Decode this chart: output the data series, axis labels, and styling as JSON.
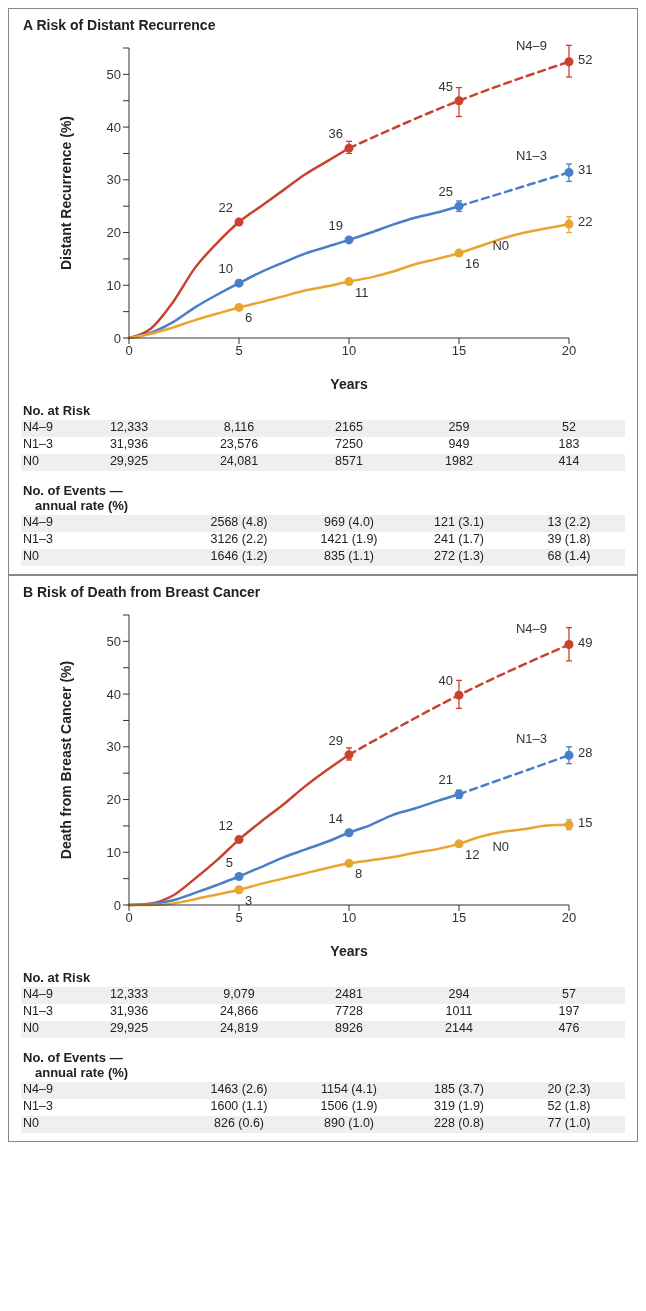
{
  "chart_data": [
    {
      "type": "line",
      "title": "A Risk of Distant Recurrence",
      "xlabel": "Years",
      "ylabel": "Distant Recurrence (%)",
      "xlim": [
        0,
        20
      ],
      "xticks": [
        0,
        5,
        10,
        15,
        20
      ],
      "ylim": [
        0,
        55
      ],
      "yticks": [
        0,
        {
          "value": 5,
          "label": null
        },
        10,
        {
          "value": 15,
          "label": null
        },
        20,
        {
          "value": 25,
          "label": null
        },
        30,
        {
          "value": 35,
          "label": null
        },
        40,
        {
          "value": 45,
          "label": null
        },
        50,
        {
          "value": 55,
          "label": null
        }
      ],
      "series": [
        {
          "type": "line",
          "color": "#c8432f",
          "line_style": "solid",
          "marker": "none",
          "x": [
            0,
            1,
            2,
            3,
            4,
            5,
            6,
            7,
            8,
            9,
            10
          ],
          "values": [
            0,
            1.8,
            6.8,
            13.3,
            18,
            22,
            25,
            28,
            31,
            33.5,
            36
          ]
        },
        {
          "type": "line",
          "color": "#c8432f",
          "line_style": "dashed",
          "marker": "none",
          "x": [
            10,
            15,
            20
          ],
          "values": [
            36,
            45,
            52.4
          ]
        },
        {
          "type": "scatter",
          "name": "N4–9",
          "color": "#c8432f",
          "marker": "circle",
          "x": [
            5,
            10,
            15,
            20
          ],
          "values": [
            22,
            36,
            45,
            52.4
          ],
          "errors": [
            null,
            [
              35,
              37.3
            ],
            [
              42,
              47.5
            ],
            [
              49.5,
              55.5
            ]
          ],
          "value_labels": [
            "22",
            "36",
            "45",
            "52"
          ]
        },
        {
          "type": "line",
          "color": "#4a7fc8",
          "line_style": "solid",
          "marker": "none",
          "x": [
            0,
            1,
            2,
            3,
            4,
            5,
            6,
            7,
            8,
            9,
            10,
            11,
            12,
            13,
            14,
            15
          ],
          "values": [
            0,
            1,
            3,
            5.8,
            8.2,
            10.4,
            12.5,
            14.3,
            16,
            17.3,
            18.6,
            20,
            21.5,
            22.8,
            23.8,
            25
          ]
        },
        {
          "type": "line",
          "color": "#4a7fc8",
          "line_style": "dashed",
          "marker": "none",
          "x": [
            15,
            20
          ],
          "values": [
            25,
            31.4
          ]
        },
        {
          "type": "scatter",
          "name": "N1–3",
          "color": "#4a7fc8",
          "marker": "circle",
          "x": [
            5,
            10,
            15,
            20
          ],
          "values": [
            10.4,
            18.6,
            25,
            31.4
          ],
          "errors": [
            null,
            null,
            [
              24,
              26
            ],
            [
              29.7,
              33
            ]
          ],
          "value_labels": [
            "10",
            "19",
            "25",
            "31"
          ]
        },
        {
          "type": "line",
          "color": "#e8a530",
          "line_style": "solid",
          "marker": "none",
          "x": [
            0,
            1,
            2,
            3,
            4,
            5,
            6,
            7,
            8,
            9,
            10,
            11,
            12,
            13,
            14,
            15,
            16,
            17,
            18,
            19,
            20
          ],
          "values": [
            0,
            0.8,
            2,
            3.4,
            4.6,
            5.8,
            6.8,
            7.9,
            9,
            9.8,
            10.7,
            11.5,
            12.6,
            14,
            15,
            16.1,
            17.5,
            18.9,
            20,
            20.8,
            21.6
          ]
        },
        {
          "type": "scatter",
          "name": "N0",
          "color": "#e8a530",
          "marker": "circle",
          "x": [
            5,
            10,
            15,
            20
          ],
          "values": [
            5.8,
            10.7,
            16.1,
            21.6
          ],
          "errors": [
            null,
            null,
            null,
            [
              20,
              23
            ]
          ],
          "value_labels": [
            "6",
            "11",
            "16",
            "22"
          ]
        }
      ],
      "annotations": [
        "No. at Risk",
        "N4–9",
        "12,333",
        "8,116",
        "2165",
        "259",
        "52",
        "N1–3",
        "31,936",
        "23,576",
        "7250",
        "949",
        "183",
        "N0",
        "29,925",
        "24,081",
        "8571",
        "1982",
        "414",
        "No. of Events — annual rate (%)",
        "N4–9",
        "2568 (4.8)",
        "969 (4.0)",
        "121 (3.1)",
        "13 (2.2)",
        "N1–3",
        "3126 (2.2)",
        "1421 (1.9)",
        "241 (1.7)",
        "39 (1.8)",
        "N0",
        "1646 (1.2)",
        "835 (1.1)",
        "272 (1.3)",
        "68 (1.4)"
      ]
    },
    {
      "type": "line",
      "title": "B Risk of Death from Breast Cancer",
      "xlabel": "Years",
      "ylabel": "Death from Breast Cancer (%)",
      "xlim": [
        0,
        20
      ],
      "xticks": [
        0,
        5,
        10,
        15,
        20
      ],
      "ylim": [
        0,
        55
      ],
      "yticks": [
        0,
        {
          "value": 5,
          "label": null
        },
        10,
        {
          "value": 15,
          "label": null
        },
        20,
        {
          "value": 25,
          "label": null
        },
        30,
        {
          "value": 35,
          "label": null
        },
        40,
        {
          "value": 45,
          "label": null
        },
        50,
        {
          "value": 55,
          "label": null
        }
      ],
      "series": [
        {
          "type": "line",
          "color": "#c8432f",
          "line_style": "solid",
          "marker": "none",
          "x": [
            0,
            1,
            2,
            3,
            4,
            5,
            6,
            7,
            8,
            9,
            10
          ],
          "values": [
            0,
            0.3,
            1.8,
            5,
            8.5,
            12.4,
            15.8,
            19,
            22.5,
            25.6,
            28.5
          ]
        },
        {
          "type": "line",
          "color": "#c8432f",
          "line_style": "dashed",
          "marker": "none",
          "x": [
            10,
            15,
            20
          ],
          "values": [
            28.5,
            39.8,
            49.4
          ]
        },
        {
          "type": "scatter",
          "name": "N4–9",
          "color": "#c8432f",
          "marker": "circle",
          "x": [
            5,
            10,
            15,
            20
          ],
          "values": [
            12.4,
            28.5,
            39.8,
            49.4
          ],
          "errors": [
            null,
            [
              27.5,
              29.8
            ],
            [
              37.3,
              42.6
            ],
            [
              46.3,
              52.6
            ]
          ],
          "value_labels": [
            "12",
            "29",
            "40",
            "49"
          ]
        },
        {
          "type": "line",
          "color": "#4a7fc8",
          "line_style": "solid",
          "marker": "none",
          "x": [
            0,
            1,
            2,
            3,
            4,
            5,
            6,
            7,
            8,
            9,
            10,
            11,
            12,
            13,
            14,
            15
          ],
          "values": [
            0,
            0.2,
            0.9,
            2.3,
            3.8,
            5.4,
            7.2,
            9,
            10.5,
            12,
            13.7,
            15.2,
            17.1,
            18.3,
            19.7,
            21
          ]
        },
        {
          "type": "line",
          "color": "#4a7fc8",
          "line_style": "dashed",
          "marker": "none",
          "x": [
            15,
            20
          ],
          "values": [
            21,
            28.4
          ]
        },
        {
          "type": "scatter",
          "name": "N1–3",
          "color": "#4a7fc8",
          "marker": "circle",
          "x": [
            5,
            10,
            15,
            20
          ],
          "values": [
            5.4,
            13.7,
            21,
            28.4
          ],
          "errors": [
            null,
            null,
            [
              20.2,
              21.8
            ],
            [
              26.8,
              30
            ]
          ],
          "value_labels": [
            "5",
            "14",
            "21",
            "28"
          ]
        },
        {
          "type": "line",
          "color": "#e8a530",
          "line_style": "solid",
          "marker": "none",
          "x": [
            0,
            1,
            2,
            3,
            4,
            5,
            6,
            7,
            8,
            9,
            10,
            11,
            12,
            13,
            14,
            15,
            16,
            17,
            18,
            19,
            20
          ],
          "values": [
            0,
            0,
            0.3,
            1.1,
            2,
            2.9,
            4,
            5,
            6,
            7,
            7.9,
            8.5,
            9.1,
            9.9,
            10.6,
            11.6,
            13,
            13.9,
            14.4,
            15.1,
            15.2
          ]
        },
        {
          "type": "scatter",
          "name": "N0",
          "color": "#e8a530",
          "marker": "circle",
          "x": [
            5,
            10,
            15,
            20
          ],
          "values": [
            2.9,
            7.9,
            11.6,
            15.2
          ],
          "errors": [
            null,
            null,
            null,
            [
              14.3,
              16.2
            ]
          ],
          "value_labels": [
            "3",
            "8",
            "12",
            "15"
          ]
        }
      ],
      "annotations": [
        "No. at Risk",
        "N4–9",
        "12,333",
        "9,079",
        "2481",
        "294",
        "57",
        "N1–3",
        "31,936",
        "24,866",
        "7728",
        "1011",
        "197",
        "N0",
        "29,925",
        "24,819",
        "8926",
        "2144",
        "476",
        "No. of Events — annual rate (%)",
        "N4–9",
        "1463 (2.6)",
        "1154 (4.1)",
        "185 (3.7)",
        "20 (2.3)",
        "N1–3",
        "1600 (1.1)",
        "1506 (1.9)",
        "319 (1.9)",
        "52 (1.8)",
        "N0",
        "826 (0.6)",
        "890 (1.0)",
        "228 (0.8)",
        "77 (1.0)"
      ]
    }
  ]
}
